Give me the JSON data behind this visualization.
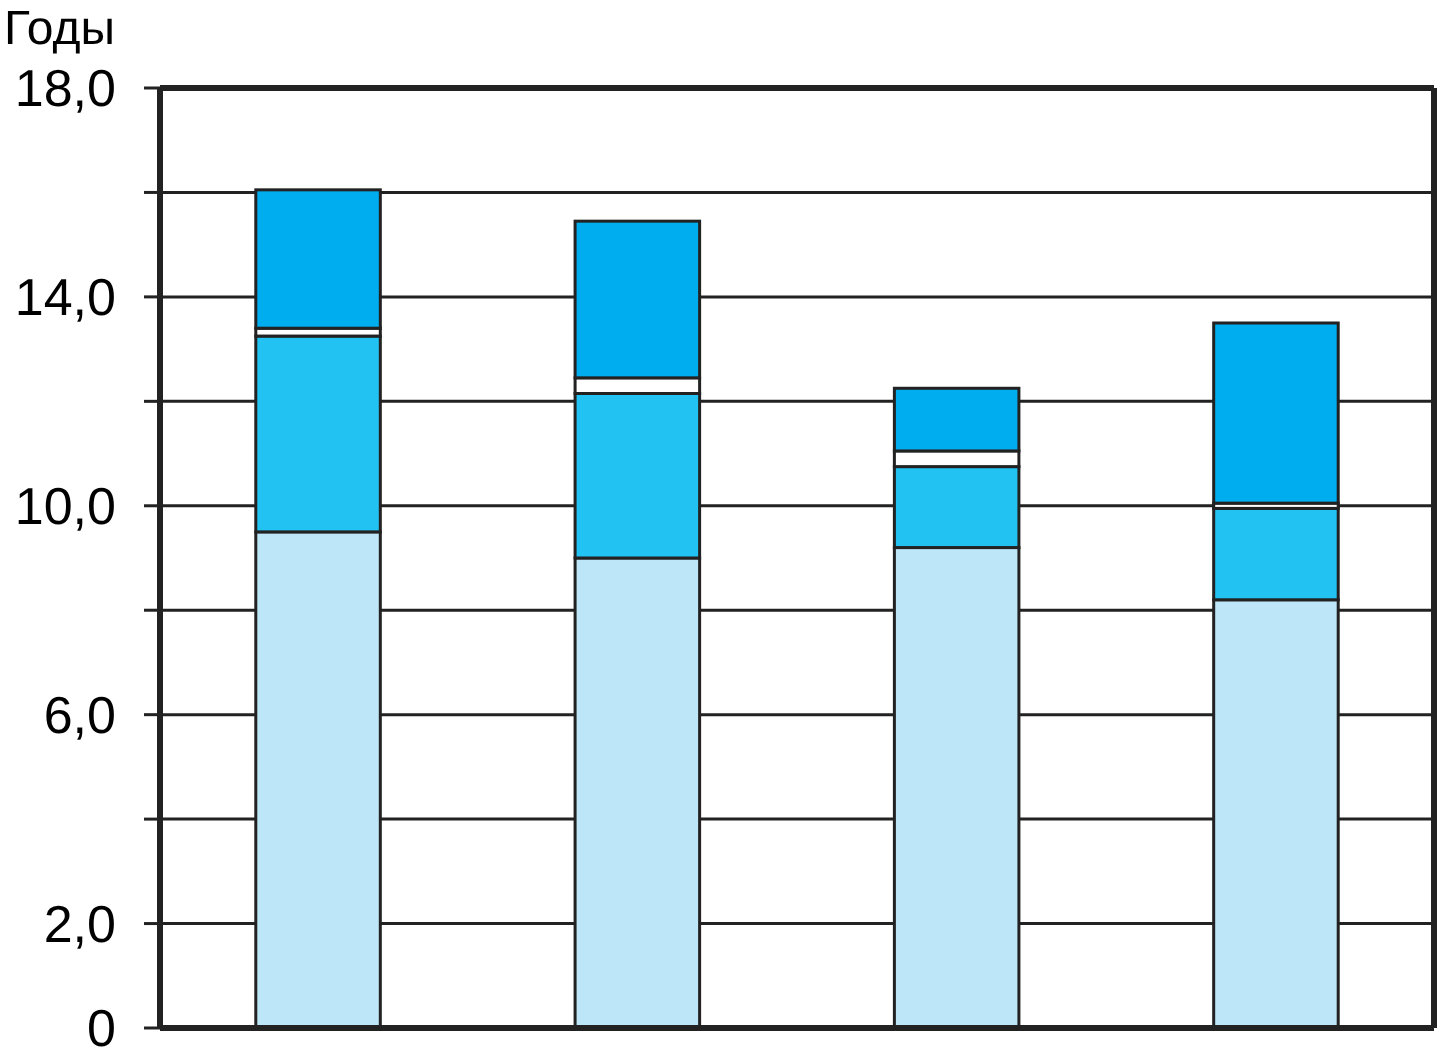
{
  "chart_data": {
    "type": "bar",
    "stacked": true,
    "ylabel": "Годы",
    "categories": [
      null,
      null,
      null,
      null
    ],
    "series": [
      {
        "color": "#bde6f8",
        "values": [
          9.5,
          9.0,
          9.2,
          8.2
        ]
      },
      {
        "color": "#22c3f2",
        "values": [
          3.75,
          3.15,
          1.55,
          1.75
        ]
      },
      {
        "color": "#ffffff",
        "values": [
          0.15,
          0.3,
          0.3,
          0.1
        ]
      },
      {
        "color": "#00adee",
        "values": [
          2.65,
          3.0,
          1.2,
          3.45
        ]
      }
    ],
    "ylim": [
      0,
      18
    ],
    "yticks": [
      {
        "value": 0,
        "label": "0"
      },
      {
        "value": 2,
        "label": "2,0"
      },
      {
        "value": 4,
        "label": null
      },
      {
        "value": 6,
        "label": "6,0"
      },
      {
        "value": 8,
        "label": null
      },
      {
        "value": 10,
        "label": "10,0"
      },
      {
        "value": 12,
        "label": null
      },
      {
        "value": 14,
        "label": "14,0"
      },
      {
        "value": 16,
        "label": null
      },
      {
        "value": 18,
        "label": "18,0"
      }
    ],
    "grid": "y"
  }
}
